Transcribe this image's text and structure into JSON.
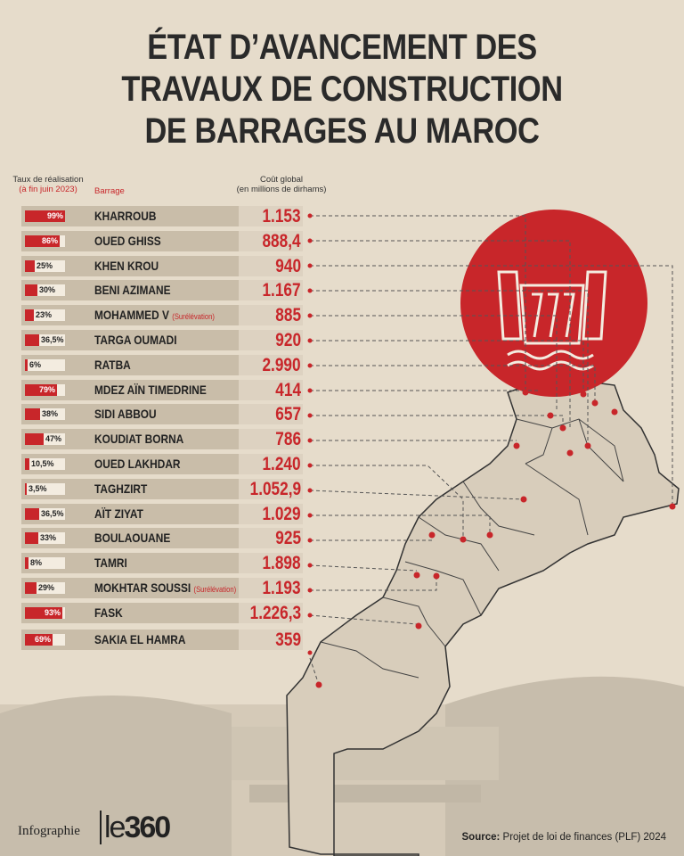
{
  "title": {
    "line1": "ÉTAT D’AVANCEMENT DES",
    "line2": "TRAVAUX DE CONSTRUCTION",
    "line3": "DE BARRAGES AU MAROC"
  },
  "headers": {
    "rate": "Taux de réalisation",
    "rate_sub": "(à fin juin 2023)",
    "dam": "Barrage",
    "cost": "Coût global",
    "cost_sub": "(en millions de dirhams)"
  },
  "colors": {
    "accent": "#c8262a",
    "background": "#e6dccb",
    "row": "#c9bda9"
  },
  "rows": [
    {
      "pct_label": "99%",
      "progress": 0.99,
      "name": "KHARROUB",
      "note": "",
      "cost": "1.153"
    },
    {
      "pct_label": "86%",
      "progress": 0.86,
      "name": "OUED GHISS",
      "note": "",
      "cost": "888,4"
    },
    {
      "pct_label": "25%",
      "progress": 0.25,
      "name": "KHEN KROU",
      "note": "",
      "cost": "940"
    },
    {
      "pct_label": "30%",
      "progress": 0.3,
      "name": "BENI AZIMANE",
      "note": "",
      "cost": "1.167"
    },
    {
      "pct_label": "23%",
      "progress": 0.23,
      "name": "MOHAMMED V",
      "note": "(Surélévation)",
      "cost": "885"
    },
    {
      "pct_label": "36,5%",
      "progress": 0.365,
      "name": "TARGA OUMADI",
      "note": "",
      "cost": "920"
    },
    {
      "pct_label": "6%",
      "progress": 0.06,
      "name": "RATBA",
      "note": "",
      "cost": "2.990"
    },
    {
      "pct_label": "79%",
      "progress": 0.79,
      "name": "MDEZ AÏN TIMEDRINE",
      "note": "",
      "cost": "414"
    },
    {
      "pct_label": "38%",
      "progress": 0.38,
      "name": "SIDI ABBOU",
      "note": "",
      "cost": "657"
    },
    {
      "pct_label": "47%",
      "progress": 0.47,
      "name": "KOUDIAT BORNA",
      "note": "",
      "cost": "786"
    },
    {
      "pct_label": "10,5%",
      "progress": 0.105,
      "name": "OUED LAKHDAR",
      "note": "",
      "cost": "1.240"
    },
    {
      "pct_label": "3,5%",
      "progress": 0.035,
      "name": "TAGHZIRT",
      "note": "",
      "cost": "1.052,9"
    },
    {
      "pct_label": "36,5%",
      "progress": 0.365,
      "name": "AÏT ZIYAT",
      "note": "",
      "cost": "1.029"
    },
    {
      "pct_label": "33%",
      "progress": 0.33,
      "name": "BOULAOUANE",
      "note": "",
      "cost": "925"
    },
    {
      "pct_label": "8%",
      "progress": 0.08,
      "name": "TAMRI",
      "note": "",
      "cost": "1.898"
    },
    {
      "pct_label": "29%",
      "progress": 0.29,
      "name": "MOKHTAR SOUSSI",
      "note": "(Surélévation)",
      "cost": "1.193"
    },
    {
      "pct_label": "93%",
      "progress": 0.93,
      "name": "FASK",
      "note": "",
      "cost": "1.226,3"
    },
    {
      "pct_label": "69%",
      "progress": 0.69,
      "name": "SAKIA EL HAMRA",
      "note": "",
      "cost": "359"
    }
  ],
  "footer": {
    "infographie": "Infographie",
    "logo_le": "le",
    "logo_num": "360",
    "source_label": "Source:",
    "source_text": " Projet de loi de finances (PLF) 2024"
  }
}
